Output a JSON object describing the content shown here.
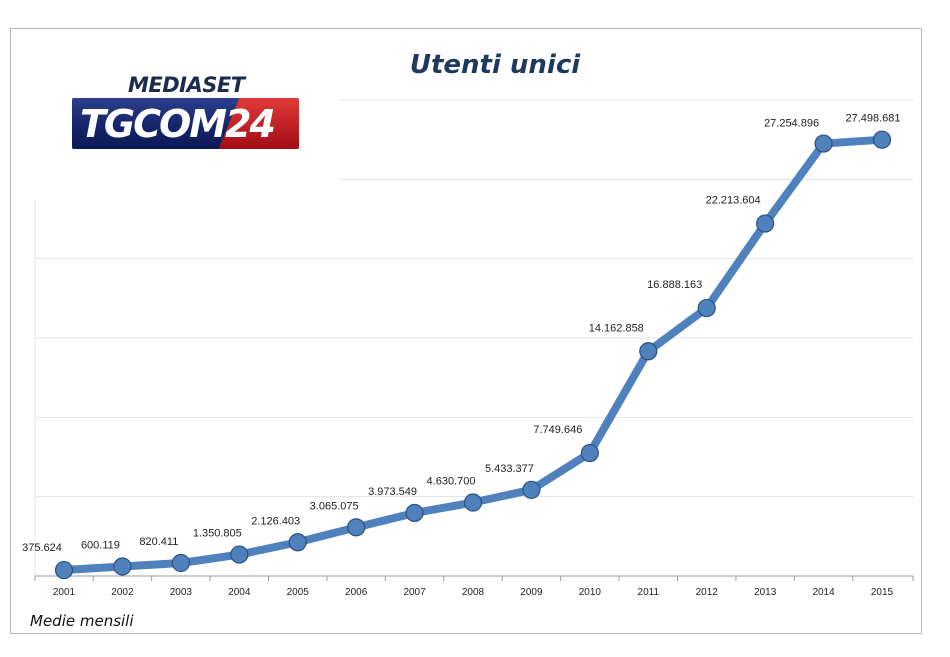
{
  "header": {
    "logo_top": "MEDIASET",
    "logo_main": "TGCOM24"
  },
  "footer": {
    "note": "Medie mensili"
  },
  "chart_data": {
    "type": "line",
    "title": "Utenti unici",
    "xlabel": "",
    "ylabel": "",
    "categories": [
      "2001",
      "2002",
      "2003",
      "2004",
      "2005",
      "2006",
      "2007",
      "2008",
      "2009",
      "2010",
      "2011",
      "2012",
      "2013",
      "2014",
      "2015"
    ],
    "series": [
      {
        "values": [
          375624,
          600119,
          820411,
          1350805,
          2126403,
          3065075,
          3973549,
          4630700,
          5433377,
          7749646,
          14162858,
          16888163,
          22213604,
          27254896,
          27498681
        ],
        "labels": [
          "375.624",
          "600.119",
          "820.411",
          "1.350.805",
          "2.126.403",
          "3.065.075",
          "3.973.549",
          "4.630.700",
          "5.433.377",
          "7.749.646",
          "14.162.858",
          "16.888.163",
          "22.213.604",
          "27.254.896",
          "27.498.681"
        ],
        "color": "#4f81bd",
        "marker_color": "#4f81bd",
        "marker_stroke": "#2f4f7f"
      }
    ],
    "ylim": [
      0,
      30000000
    ],
    "grid": true,
    "gridline_color": "#dde3ec",
    "legend": "none"
  }
}
